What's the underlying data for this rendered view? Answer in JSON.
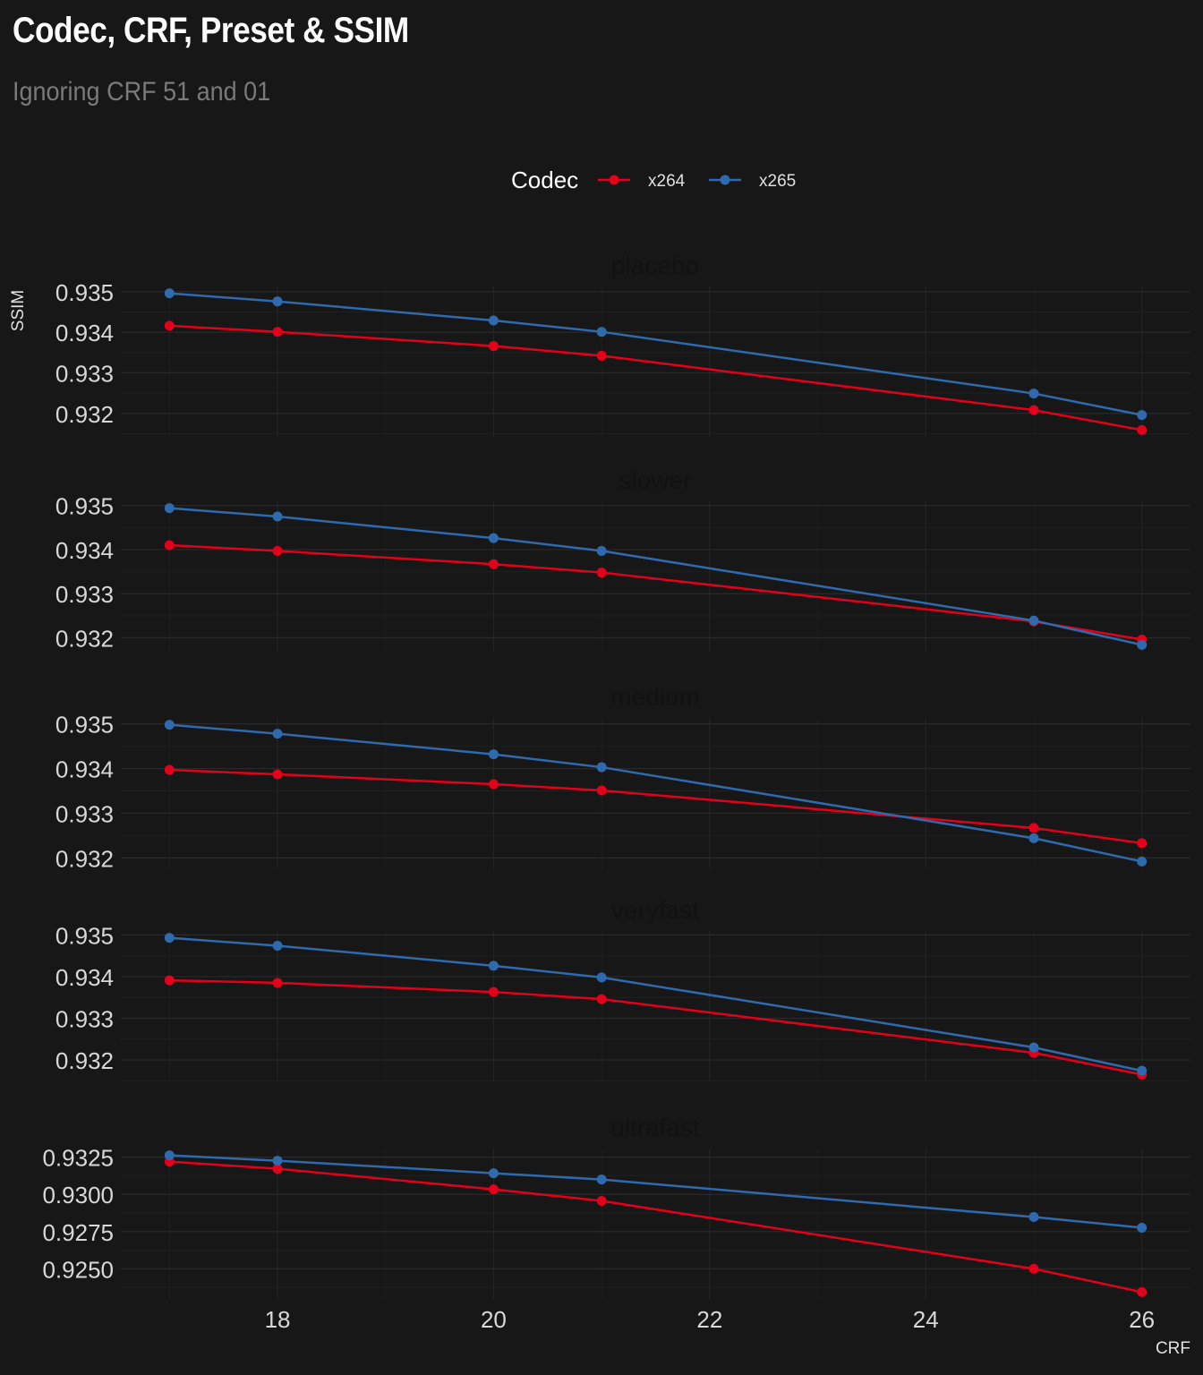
{
  "chart_data": {
    "type": "line",
    "title": "Codec, CRF, Preset & SSIM",
    "subtitle": "Ignoring CRF 51 and 01",
    "xlabel": "CRF",
    "ylabel": "SSIM",
    "legend": {
      "title": "Codec",
      "position": "top"
    },
    "colors": {
      "x264": "#e3001b",
      "x265": "#2e6aad"
    },
    "x": [
      17,
      18,
      20,
      21,
      25,
      26
    ],
    "xlim": [
      16.55,
      26.45
    ],
    "xticks": [
      18,
      20,
      22,
      24,
      26
    ],
    "grid": true,
    "facets": [
      {
        "name": "placebo",
        "yticks": [
          "0.932",
          "0.933",
          "0.934",
          "0.935"
        ],
        "ytick_values": [
          0.932,
          0.933,
          0.934,
          0.935
        ],
        "series": [
          {
            "name": "x264",
            "values": [
              0.93416,
              0.93401,
              0.93366,
              0.93342,
              0.93208,
              0.93159
            ]
          },
          {
            "name": "x265",
            "values": [
              0.93496,
              0.93476,
              0.93429,
              0.93401,
              0.93249,
              0.93196
            ]
          }
        ]
      },
      {
        "name": "slower",
        "yticks": [
          "0.932",
          "0.933",
          "0.934",
          "0.935"
        ],
        "ytick_values": [
          0.932,
          0.933,
          0.934,
          0.935
        ],
        "series": [
          {
            "name": "x264",
            "values": [
              0.9341,
              0.93397,
              0.93367,
              0.93348,
              0.93237,
              0.93196
            ]
          },
          {
            "name": "x265",
            "values": [
              0.93494,
              0.93475,
              0.93426,
              0.93397,
              0.93239,
              0.93184
            ]
          }
        ]
      },
      {
        "name": "medium",
        "yticks": [
          "0.932",
          "0.933",
          "0.934",
          "0.935"
        ],
        "ytick_values": [
          0.932,
          0.933,
          0.934,
          0.935
        ],
        "series": [
          {
            "name": "x264",
            "values": [
              0.93397,
              0.93387,
              0.93365,
              0.93351,
              0.93267,
              0.93233
            ]
          },
          {
            "name": "x265",
            "values": [
              0.93498,
              0.93478,
              0.93432,
              0.93403,
              0.93244,
              0.93192
            ]
          }
        ]
      },
      {
        "name": "veryfast",
        "yticks": [
          "0.932",
          "0.933",
          "0.934",
          "0.935"
        ],
        "ytick_values": [
          0.932,
          0.933,
          0.934,
          0.935
        ],
        "series": [
          {
            "name": "x264",
            "values": [
              0.93391,
              0.93385,
              0.93363,
              0.93346,
              0.93217,
              0.93165
            ]
          },
          {
            "name": "x265",
            "values": [
              0.93493,
              0.93474,
              0.93426,
              0.93398,
              0.9323,
              0.93174
            ]
          }
        ]
      },
      {
        "name": "ultrafast",
        "yticks": [
          "0.9250",
          "0.9275",
          "0.9300",
          "0.9325"
        ],
        "ytick_values": [
          0.925,
          0.9275,
          0.93,
          0.9325
        ],
        "series": [
          {
            "name": "x264",
            "values": [
              0.9322,
              0.93172,
              0.93034,
              0.92956,
              0.925,
              0.92344
            ]
          },
          {
            "name": "x265",
            "values": [
              0.93262,
              0.93226,
              0.93142,
              0.931,
              0.92848,
              0.92776
            ]
          }
        ]
      }
    ]
  }
}
